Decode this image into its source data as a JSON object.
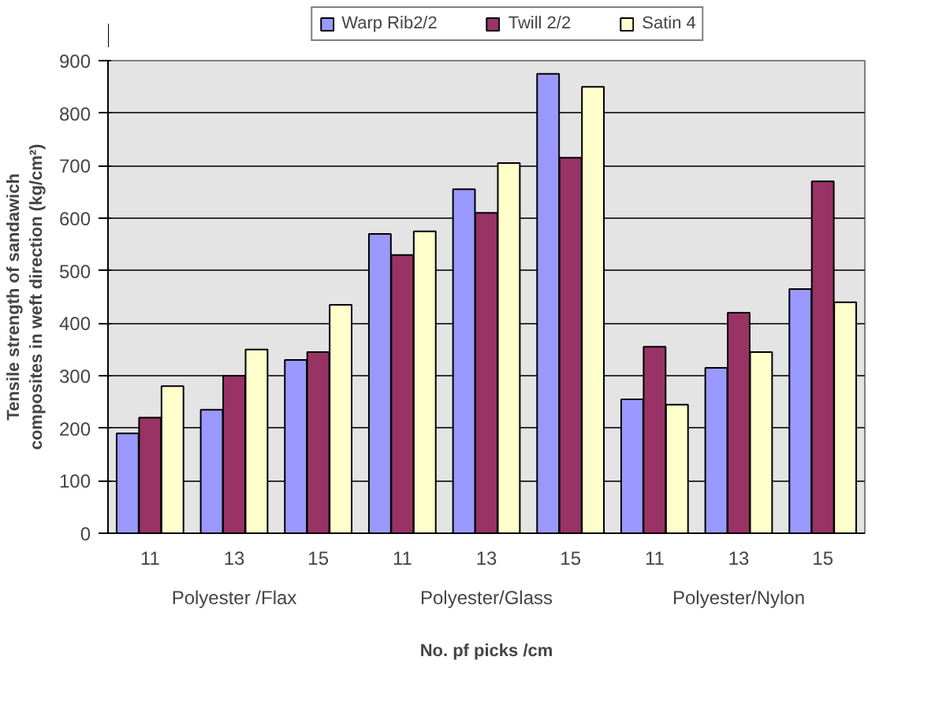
{
  "chart_data": {
    "type": "bar",
    "categories": [
      "11",
      "13",
      "15",
      "11",
      "13",
      "15",
      "11",
      "13",
      "15"
    ],
    "annotations": [
      "Polyester /Flax",
      "Polyester/Glass",
      "Polyester/Nylon"
    ],
    "xlabel": "No. pf picks /cm",
    "ylabel": "Tensile strength of sandawich composites in weft direction (kg/cm²)",
    "series": [
      {
        "name": "Warp Rib2/2",
        "color": "#9999ff",
        "values": [
          190,
          235,
          330,
          570,
          655,
          875,
          255,
          315,
          465
        ]
      },
      {
        "name": "Twill 2/2",
        "color": "#993366",
        "values": [
          220,
          300,
          345,
          530,
          610,
          715,
          355,
          420,
          670
        ]
      },
      {
        "name": "Satin 4",
        "color": "#ffffcc",
        "values": [
          280,
          350,
          435,
          575,
          705,
          850,
          245,
          345,
          440
        ]
      }
    ],
    "ylim": [
      0,
      900
    ],
    "yticks": [
      0,
      100,
      200,
      300,
      400,
      500,
      600,
      700,
      800,
      900
    ],
    "grid": "y",
    "legend": "top"
  }
}
